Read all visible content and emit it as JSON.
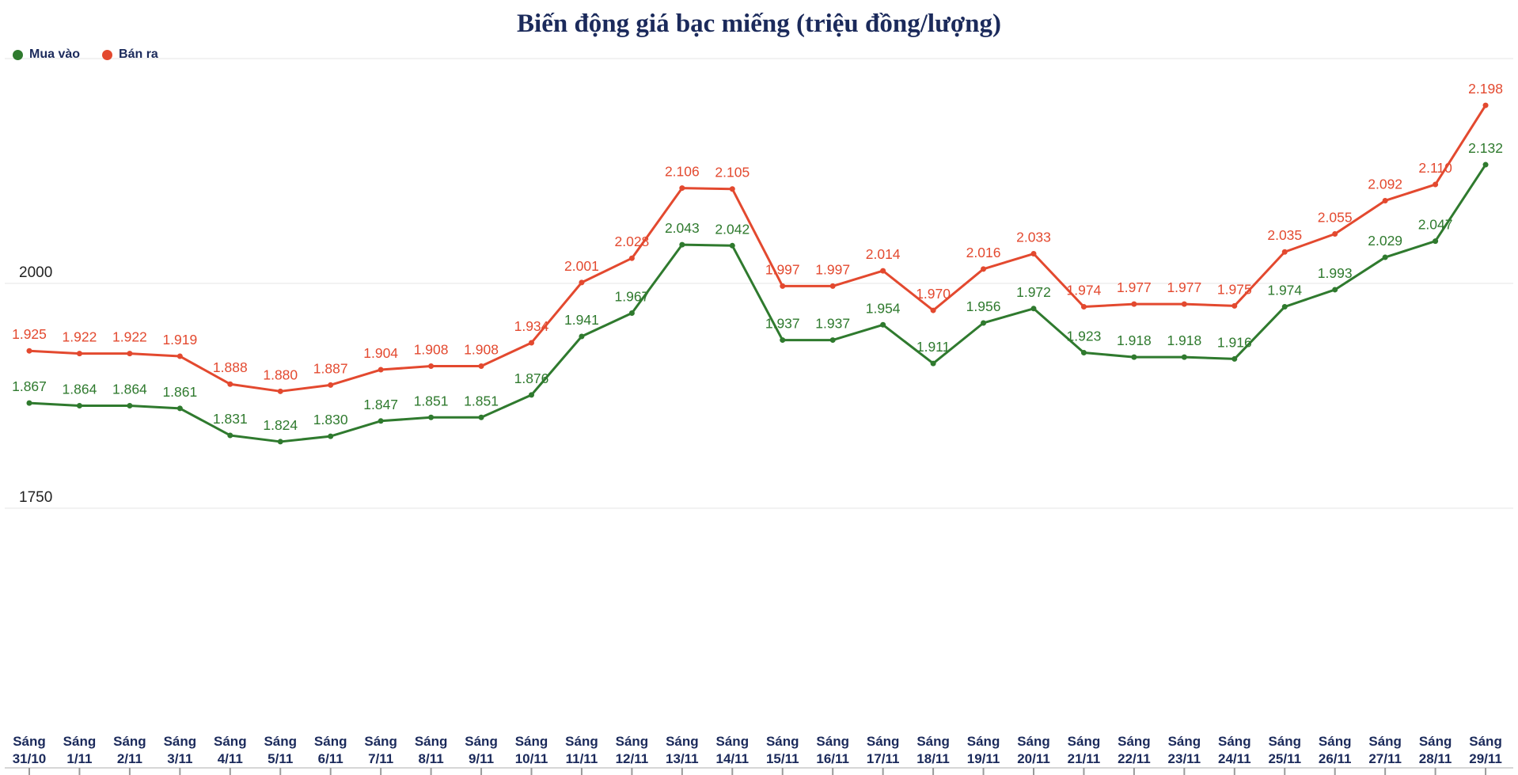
{
  "title": "Biến động giá bạc miếng (triệu đồng/lượng)",
  "legend": [
    {
      "label": "Mua vào",
      "color": "#2f7a2e"
    },
    {
      "label": "Bán ra",
      "color": "#e3492f"
    }
  ],
  "colors": {
    "navy": "#1b2a5b",
    "grid": "#e4e4e4",
    "axis_text": "#222222",
    "navigator_line": "#c9c9c9",
    "navigator_tick": "#9a9a9a"
  },
  "chart_data": {
    "type": "line",
    "title": "Biến động giá bạc miếng (triệu đồng/lượng)",
    "x_prefix": "Sáng",
    "categories": [
      "31/10",
      "1/11",
      "2/11",
      "3/11",
      "4/11",
      "5/11",
      "6/11",
      "7/11",
      "8/11",
      "9/11",
      "10/11",
      "11/11",
      "12/11",
      "13/11",
      "14/11",
      "15/11",
      "16/11",
      "17/11",
      "18/11",
      "19/11",
      "20/11",
      "21/11",
      "22/11",
      "23/11",
      "24/11",
      "25/11",
      "26/11",
      "27/11",
      "28/11",
      "29/11"
    ],
    "series": [
      {
        "name": "Mua vào",
        "color": "#2f7a2e",
        "values": [
          1.867,
          1.864,
          1.864,
          1.861,
          1.831,
          1.824,
          1.83,
          1.847,
          1.851,
          1.851,
          1.876,
          1.941,
          1.967,
          2.043,
          2.042,
          1.937,
          1.937,
          1.954,
          1.911,
          1.956,
          1.972,
          1.923,
          1.918,
          1.918,
          1.916,
          1.974,
          1.993,
          2.029,
          2.047,
          2.132
        ]
      },
      {
        "name": "Bán ra",
        "color": "#e3492f",
        "values": [
          1.925,
          1.922,
          1.922,
          1.919,
          1.888,
          1.88,
          1.887,
          1.904,
          1.908,
          1.908,
          1.934,
          2.001,
          2.028,
          2.106,
          2.105,
          1.997,
          1.997,
          2.014,
          1.97,
          2.016,
          2.033,
          1.974,
          1.977,
          1.977,
          1.975,
          2.035,
          2.055,
          2.092,
          2.11,
          2.198
        ]
      }
    ],
    "y_ticks": [
      {
        "value": 2.0,
        "label": "2000"
      },
      {
        "value": 1.75,
        "label": "1750"
      }
    ],
    "grid_values": [
      2.25,
      2.0,
      1.75
    ],
    "ylim": [
      1.47,
      2.25
    ],
    "legend_position": "top-left",
    "grid": "horizontal"
  }
}
